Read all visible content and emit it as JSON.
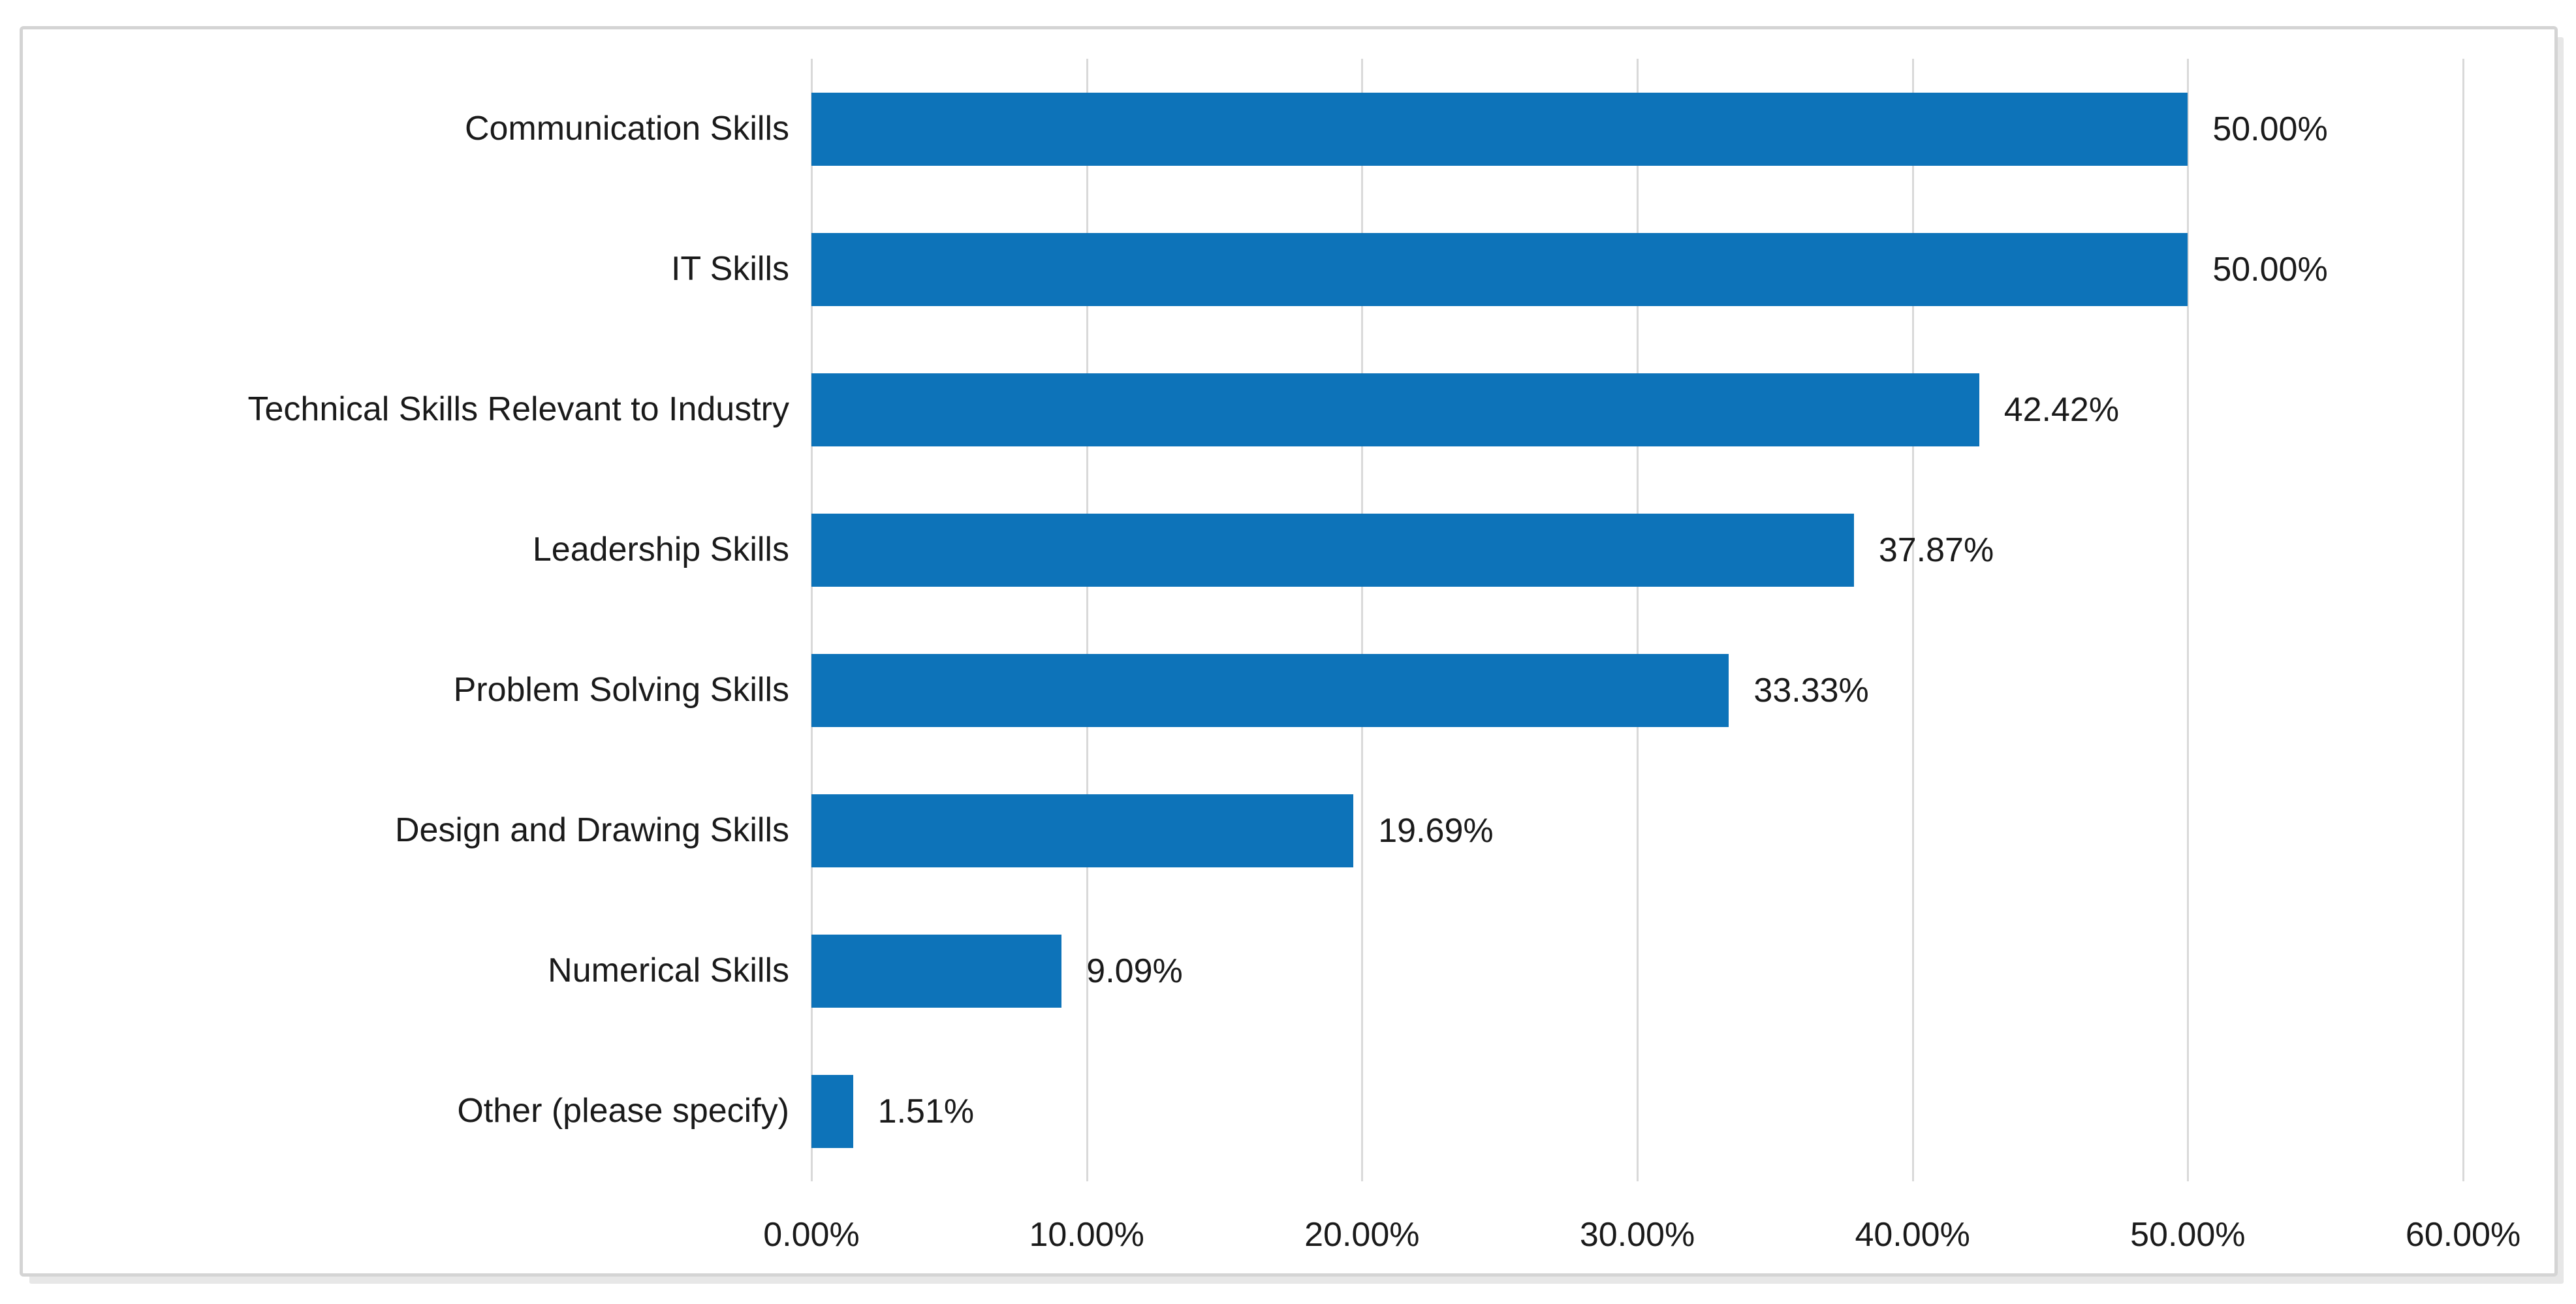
{
  "chart_data": {
    "type": "bar",
    "orientation": "horizontal",
    "title": "",
    "xlabel": "",
    "ylabel": "",
    "categories": [
      "Communication Skills",
      "IT Skills",
      "Technical Skills Relevant to Industry",
      "Leadership Skills",
      "Problem Solving Skills",
      "Design and Drawing Skills",
      "Numerical Skills",
      "Other (please specify)"
    ],
    "values": [
      50.0,
      50.0,
      42.42,
      37.87,
      33.33,
      19.69,
      9.09,
      1.51
    ],
    "value_labels": [
      "50.00%",
      "50.00%",
      "42.42%",
      "37.87%",
      "33.33%",
      "19.69%",
      "9.09%",
      "1.51%"
    ],
    "xlim": [
      0,
      60
    ],
    "x_ticks": [
      {
        "value": 0,
        "label": "0.00%"
      },
      {
        "value": 10,
        "label": "10.00%"
      },
      {
        "value": 20,
        "label": "20.00%"
      },
      {
        "value": 30,
        "label": "30.00%"
      },
      {
        "value": 40,
        "label": "40.00%"
      },
      {
        "value": 50,
        "label": "50.00%"
      },
      {
        "value": 60,
        "label": "60.00%"
      }
    ],
    "grid": "vertical",
    "legend": "none",
    "colors": {
      "bar": "#0d73b9",
      "gridline": "#d9d9d9",
      "text": "#1a1a1a",
      "frame_border": "#d4d4d4",
      "frame_shadow": "#e7e7e7",
      "background": "#ffffff"
    }
  }
}
